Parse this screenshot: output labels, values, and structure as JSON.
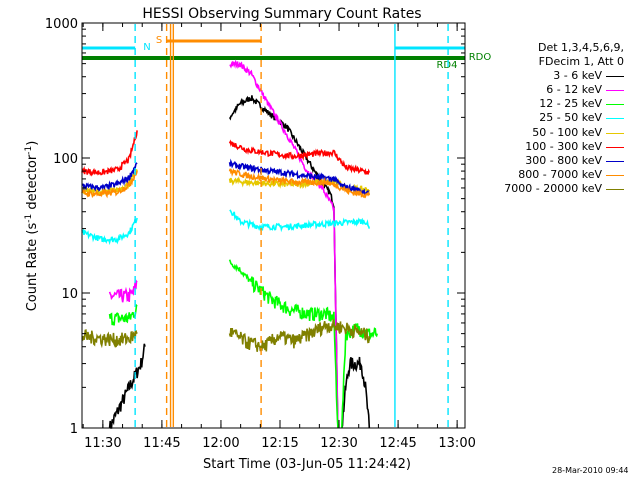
{
  "chart_data": {
    "type": "line",
    "title": "HESSI Observing Summary Count Rates",
    "xlabel": "Start Time (03-Jun-05 11:24:42)",
    "ylabel": "Count Rate (s-1 detector-1)",
    "x_start": "11:24:42",
    "x_end": "13:02",
    "xlim_minutes": [
      0,
      97.3
    ],
    "ylim": [
      1,
      1000
    ],
    "yscale": "log",
    "x_ticks": [
      "11:30",
      "11:45",
      "12:00",
      "12:15",
      "12:30",
      "12:45",
      "13:00"
    ],
    "y_ticks": [
      "1",
      "10",
      "100",
      "1000"
    ],
    "legend": {
      "header": [
        "Det 1,3,4,5,6,9,",
        "FDecim 1, Att 0"
      ],
      "placement": "right-outside"
    },
    "flags": [
      {
        "label": "N",
        "color": "#00e5ff"
      },
      {
        "label": "S",
        "color": "#ff8c00"
      },
      {
        "label": "RD4",
        "color": "#008000"
      },
      {
        "label": "RDO",
        "color": "#008000"
      }
    ],
    "series": [
      {
        "name": "3 - 6 keV",
        "color": "#000000",
        "segments": [
          [
            [
              7,
              1
            ],
            [
              12,
              2
            ],
            [
              15,
              3
            ],
            [
              16,
              4
            ]
          ],
          [
            [
              37.5,
              200
            ],
            [
              40,
              250
            ],
            [
              43,
              280
            ],
            [
              47,
              220
            ],
            [
              52,
              170
            ],
            [
              57,
              100
            ],
            [
              61,
              65
            ],
            [
              63,
              55
            ],
            [
              64,
              45
            ],
            [
              65,
              1
            ]
          ],
          [
            [
              66,
              1
            ],
            [
              67,
              2
            ],
            [
              68,
              3
            ],
            [
              71,
              3
            ],
            [
              72,
              2
            ],
            [
              73,
              1
            ]
          ]
        ]
      },
      {
        "name": "6 - 12 keV",
        "color": "#ff00ff",
        "segments": [
          [
            [
              7,
              9.5
            ],
            [
              12,
              9.5
            ],
            [
              13,
              10
            ],
            [
              14,
              12
            ]
          ],
          [
            [
              37.5,
              490
            ],
            [
              40,
              500
            ],
            [
              43,
              420
            ],
            [
              47,
              260
            ],
            [
              52,
              150
            ],
            [
              57,
              82
            ],
            [
              61,
              60
            ],
            [
              64,
              42
            ],
            [
              65,
              1
            ]
          ]
        ]
      },
      {
        "name": "12 - 25 keV",
        "color": "#00ff00",
        "segments": [
          [
            [
              7,
              6.5
            ],
            [
              12,
              6.5
            ],
            [
              13,
              7
            ],
            [
              14,
              8
            ]
          ],
          [
            [
              37.5,
              17
            ],
            [
              40,
              15
            ],
            [
              43,
              12
            ],
            [
              48,
              9
            ],
            [
              53,
              7.5
            ],
            [
              58,
              7
            ],
            [
              62,
              7
            ],
            [
              64,
              6.5
            ],
            [
              65,
              1
            ]
          ],
          [
            [
              66,
              1
            ],
            [
              67,
              5
            ],
            [
              70,
              5.5
            ],
            [
              73,
              5
            ],
            [
              75,
              5
            ]
          ]
        ]
      },
      {
        "name": "25 - 50 keV",
        "color": "#00ffff",
        "segments": [
          [
            [
              0,
              28
            ],
            [
              5,
              25
            ],
            [
              9,
              25
            ],
            [
              12,
              28
            ],
            [
              14,
              36
            ]
          ],
          [
            [
              37.5,
              42
            ],
            [
              40,
              34
            ],
            [
              45,
              31
            ],
            [
              52,
              31
            ],
            [
              58,
              32
            ],
            [
              65,
              33
            ],
            [
              72,
              34
            ],
            [
              73,
              30
            ]
          ]
        ]
      },
      {
        "name": "50 - 100 keV",
        "color": "#e6c800",
        "segments": [
          [
            [
              0,
              58
            ],
            [
              5,
              56
            ],
            [
              9,
              58
            ],
            [
              12,
              64
            ],
            [
              14,
              82
            ]
          ],
          [
            [
              37.5,
              68
            ],
            [
              42,
              66
            ],
            [
              50,
              64
            ],
            [
              56,
              64
            ],
            [
              60,
              66
            ],
            [
              65,
              66
            ],
            [
              67,
              60
            ],
            [
              73,
              58
            ]
          ]
        ]
      },
      {
        "name": "100 - 300 keV",
        "color": "#ff0000",
        "segments": [
          [
            [
              0,
              80
            ],
            [
              5,
              78
            ],
            [
              9,
              82
            ],
            [
              12,
              98
            ],
            [
              14,
              160
            ]
          ],
          [
            [
              37.5,
              130
            ],
            [
              42,
              115
            ],
            [
              48,
              108
            ],
            [
              54,
              103
            ],
            [
              60,
              108
            ],
            [
              64,
              110
            ],
            [
              67,
              85
            ],
            [
              73,
              78
            ]
          ]
        ]
      },
      {
        "name": "300 - 800 keV",
        "color": "#0000c8",
        "segments": [
          [
            [
              0,
              62
            ],
            [
              5,
              60
            ],
            [
              9,
              64
            ],
            [
              12,
              72
            ],
            [
              14,
              92
            ]
          ],
          [
            [
              37.5,
              90
            ],
            [
              42,
              85
            ],
            [
              48,
              80
            ],
            [
              54,
              76
            ],
            [
              60,
              72
            ],
            [
              64,
              70
            ],
            [
              66,
              62
            ],
            [
              73,
              55
            ]
          ]
        ]
      },
      {
        "name": "800 - 7000 keV",
        "color": "#ff8c00",
        "segments": [
          [
            [
              0,
              55
            ],
            [
              5,
              54
            ],
            [
              9,
              56
            ],
            [
              12,
              63
            ],
            [
              14,
              80
            ]
          ],
          [
            [
              37.5,
              80
            ],
            [
              42,
              74
            ],
            [
              50,
              68
            ],
            [
              56,
              66
            ],
            [
              62,
              66
            ],
            [
              65,
              62
            ],
            [
              68,
              56
            ],
            [
              73,
              53
            ]
          ]
        ]
      },
      {
        "name": "7000 - 20000 keV",
        "color": "#808000",
        "segments": [
          [
            [
              0,
              4.8
            ],
            [
              5,
              4.6
            ],
            [
              9,
              4.5
            ],
            [
              12,
              4.6
            ],
            [
              14,
              5
            ]
          ],
          [
            [
              37.5,
              5.2
            ],
            [
              42,
              4.3
            ],
            [
              46,
              4
            ],
            [
              50,
              4.8
            ],
            [
              54,
              4.4
            ],
            [
              58,
              5
            ],
            [
              62,
              5.8
            ],
            [
              66,
              5.6
            ],
            [
              70,
              5.2
            ],
            [
              73,
              4.8
            ]
          ]
        ]
      }
    ],
    "footer": "28-Mar-2010 09:44"
  }
}
